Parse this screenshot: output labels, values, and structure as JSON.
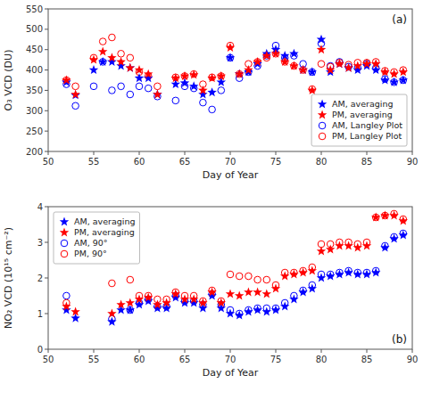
{
  "chart_data": [
    {
      "type": "scatter",
      "title": "(a)",
      "xlabel": "Day of Year",
      "ylabel": "O₃ VCD (DU)",
      "xlim": [
        50,
        90
      ],
      "ylim": [
        200,
        550
      ],
      "xticks": [
        50,
        55,
        60,
        65,
        70,
        75,
        80,
        85,
        90
      ],
      "yticks": [
        200,
        250,
        300,
        350,
        400,
        450,
        500,
        550
      ],
      "grid": false,
      "legend": "lower right",
      "series": [
        {
          "name": "AM, averaging",
          "color": "#0000FF",
          "marker": "star",
          "x": [
            52,
            53,
            55,
            56,
            57,
            58,
            59,
            60,
            61,
            62,
            64,
            65,
            66,
            67,
            68,
            69,
            70,
            71,
            72,
            73,
            74,
            75,
            76,
            77,
            78,
            79,
            80,
            81,
            82,
            83,
            84,
            85,
            86,
            87,
            88,
            89
          ],
          "values": [
            370,
            338,
            400,
            420,
            420,
            410,
            405,
            380,
            380,
            340,
            365,
            368,
            360,
            340,
            345,
            370,
            430,
            390,
            395,
            415,
            440,
            450,
            435,
            440,
            400,
            395,
            475,
            395,
            415,
            405,
            400,
            410,
            400,
            375,
            370,
            375
          ]
        },
        {
          "name": "PM, averaging",
          "color": "#FF0000",
          "marker": "star",
          "x": [
            52,
            53,
            55,
            56,
            57,
            58,
            59,
            60,
            61,
            62,
            64,
            65,
            66,
            67,
            68,
            69,
            70,
            71,
            72,
            73,
            74,
            75,
            76,
            77,
            78,
            79,
            80,
            81,
            82,
            83,
            84,
            85,
            86,
            87,
            88,
            89
          ],
          "values": [
            375,
            340,
            425,
            445,
            430,
            420,
            405,
            400,
            390,
            340,
            380,
            385,
            388,
            350,
            380,
            385,
            455,
            390,
            400,
            420,
            435,
            440,
            420,
            410,
            400,
            350,
            450,
            400,
            415,
            405,
            410,
            415,
            415,
            395,
            390,
            395
          ]
        },
        {
          "name": "AM, Langley Plot",
          "color": "#0000FF",
          "marker": "open-circle",
          "x": [
            52,
            53,
            55,
            56,
            57,
            58,
            59,
            60,
            61,
            62,
            64,
            65,
            66,
            67,
            68,
            69,
            70,
            71,
            72,
            73,
            74,
            75,
            76,
            77,
            78,
            79,
            80,
            81,
            82,
            83,
            84,
            85,
            86,
            87,
            88,
            89
          ],
          "values": [
            365,
            312,
            360,
            420,
            350,
            360,
            340,
            360,
            355,
            335,
            325,
            360,
            355,
            320,
            303,
            350,
            430,
            380,
            395,
            410,
            435,
            460,
            430,
            435,
            415,
            395,
            465,
            410,
            420,
            408,
            405,
            415,
            405,
            378,
            370,
            375
          ]
        },
        {
          "name": "PM, Langley Plot",
          "color": "#FF0000",
          "marker": "open-circle",
          "x": [
            52,
            53,
            55,
            56,
            57,
            58,
            59,
            60,
            61,
            62,
            64,
            65,
            66,
            67,
            68,
            69,
            70,
            71,
            72,
            73,
            74,
            75,
            76,
            77,
            78,
            79,
            80,
            81,
            82,
            83,
            84,
            85,
            86,
            87,
            88,
            89
          ],
          "values": [
            375,
            360,
            430,
            470,
            480,
            440,
            430,
            395,
            385,
            360,
            382,
            385,
            390,
            365,
            382,
            385,
            460,
            390,
            415,
            420,
            430,
            440,
            420,
            410,
            400,
            353,
            415,
            408,
            418,
            413,
            418,
            418,
            420,
            398,
            395,
            400
          ]
        }
      ]
    },
    {
      "type": "scatter",
      "title": "(b)",
      "xlabel": "Day of Year",
      "ylabel": "NO₂ VCD (10¹⁵ cm⁻²)",
      "xlim": [
        50,
        90
      ],
      "ylim": [
        0,
        4
      ],
      "xticks": [
        50,
        55,
        60,
        65,
        70,
        75,
        80,
        85,
        90
      ],
      "yticks": [
        0,
        1,
        2,
        3,
        4
      ],
      "grid": false,
      "legend": "upper left",
      "series": [
        {
          "name": "AM, averaging",
          "color": "#0000FF",
          "marker": "star",
          "x": [
            52,
            53,
            57,
            58,
            59,
            60,
            61,
            62,
            63,
            64,
            65,
            66,
            67,
            68,
            69,
            70,
            71,
            72,
            73,
            74,
            75,
            76,
            77,
            78,
            79,
            80,
            81,
            82,
            83,
            84,
            85,
            86,
            87,
            88,
            89
          ],
          "values": [
            1.1,
            0.87,
            0.77,
            1.1,
            1.1,
            1.25,
            1.35,
            1.15,
            1.15,
            1.45,
            1.3,
            1.3,
            1.15,
            1.5,
            1.15,
            1.0,
            0.95,
            1.05,
            1.1,
            1.05,
            1.1,
            1.2,
            1.4,
            1.6,
            1.7,
            2.0,
            2.05,
            2.1,
            2.15,
            2.1,
            2.1,
            2.15,
            2.85,
            3.1,
            3.2
          ]
        },
        {
          "name": "PM, averaging",
          "color": "#FF0000",
          "marker": "star",
          "x": [
            52,
            53,
            57,
            58,
            59,
            60,
            61,
            62,
            63,
            64,
            65,
            66,
            67,
            68,
            69,
            70,
            71,
            72,
            73,
            74,
            75,
            76,
            77,
            78,
            79,
            80,
            81,
            82,
            83,
            84,
            85,
            86,
            87,
            88,
            89
          ],
          "values": [
            1.2,
            1.05,
            1.0,
            1.25,
            1.3,
            1.4,
            1.45,
            1.25,
            1.3,
            1.55,
            1.4,
            1.4,
            1.3,
            1.6,
            1.3,
            1.55,
            1.5,
            1.6,
            1.6,
            1.55,
            1.7,
            2.05,
            2.1,
            2.15,
            2.2,
            2.75,
            2.8,
            2.9,
            2.9,
            2.85,
            2.9,
            3.7,
            3.75,
            3.75,
            3.6
          ]
        },
        {
          "name": "AM, 90°",
          "color": "#0000FF",
          "marker": "open-circle",
          "x": [
            52,
            57,
            59,
            60,
            61,
            62,
            63,
            64,
            65,
            66,
            67,
            68,
            69,
            70,
            71,
            72,
            73,
            74,
            75,
            76,
            77,
            78,
            79,
            80,
            81,
            82,
            83,
            84,
            85,
            86,
            87,
            88,
            89
          ],
          "values": [
            1.5,
            0.85,
            1.1,
            1.3,
            1.4,
            1.2,
            1.2,
            1.5,
            1.35,
            1.35,
            1.25,
            1.55,
            1.25,
            1.1,
            1.0,
            1.1,
            1.15,
            1.15,
            1.15,
            1.3,
            1.5,
            1.65,
            1.8,
            2.1,
            2.1,
            2.15,
            2.2,
            2.15,
            2.15,
            2.2,
            2.9,
            3.15,
            3.25
          ]
        },
        {
          "name": "PM, 90°",
          "color": "#FF0000",
          "marker": "open-circle",
          "x": [
            52,
            57,
            59,
            60,
            61,
            62,
            63,
            64,
            65,
            66,
            67,
            68,
            69,
            70,
            71,
            72,
            73,
            74,
            75,
            76,
            77,
            78,
            79,
            80,
            81,
            82,
            83,
            84,
            85,
            86,
            87,
            88,
            89
          ],
          "values": [
            1.3,
            1.85,
            1.95,
            1.5,
            1.5,
            1.4,
            1.4,
            1.6,
            1.5,
            1.5,
            1.35,
            1.65,
            1.35,
            2.1,
            2.05,
            2.05,
            1.95,
            1.95,
            1.8,
            2.15,
            2.15,
            2.2,
            2.3,
            2.95,
            2.95,
            3.0,
            3.0,
            2.95,
            3.0,
            3.7,
            3.75,
            3.8,
            3.65
          ]
        }
      ]
    }
  ]
}
